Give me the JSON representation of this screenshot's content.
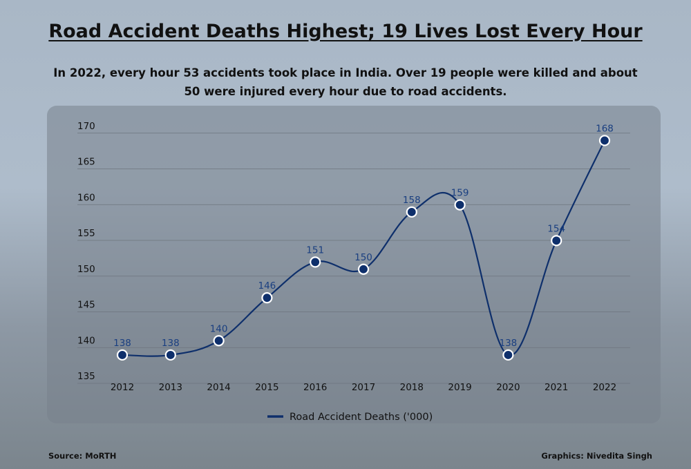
{
  "header": {
    "title": "Road Accident Deaths Highest; 19 Lives Lost Every Hour",
    "subtitle": "In 2022, every hour 53 accidents took place in India. Over 19 people were killed and about 50 were injured every hour due to road accidents."
  },
  "footer": {
    "source": "Source: MoRTH",
    "credit": "Graphics: Nivedita Singh"
  },
  "colors": {
    "line": "#0e2f6b",
    "label": "#1a3f80",
    "grid": "#6c757e"
  },
  "chart_data": {
    "type": "line",
    "x": [
      "2012",
      "2013",
      "2014",
      "2015",
      "2016",
      "2017",
      "2018",
      "2019",
      "2020",
      "2021",
      "2022"
    ],
    "series": [
      {
        "name": "Road Accident Deaths ('000)",
        "values": [
          138,
          138,
          140,
          146,
          151,
          150,
          158,
          159,
          138,
          154,
          168
        ]
      }
    ],
    "yticks": [
      135,
      140,
      145,
      150,
      155,
      160,
      165,
      170
    ],
    "ylim": [
      135,
      171
    ],
    "grid": true,
    "legend": "bottom-center",
    "data_labels": true
  }
}
